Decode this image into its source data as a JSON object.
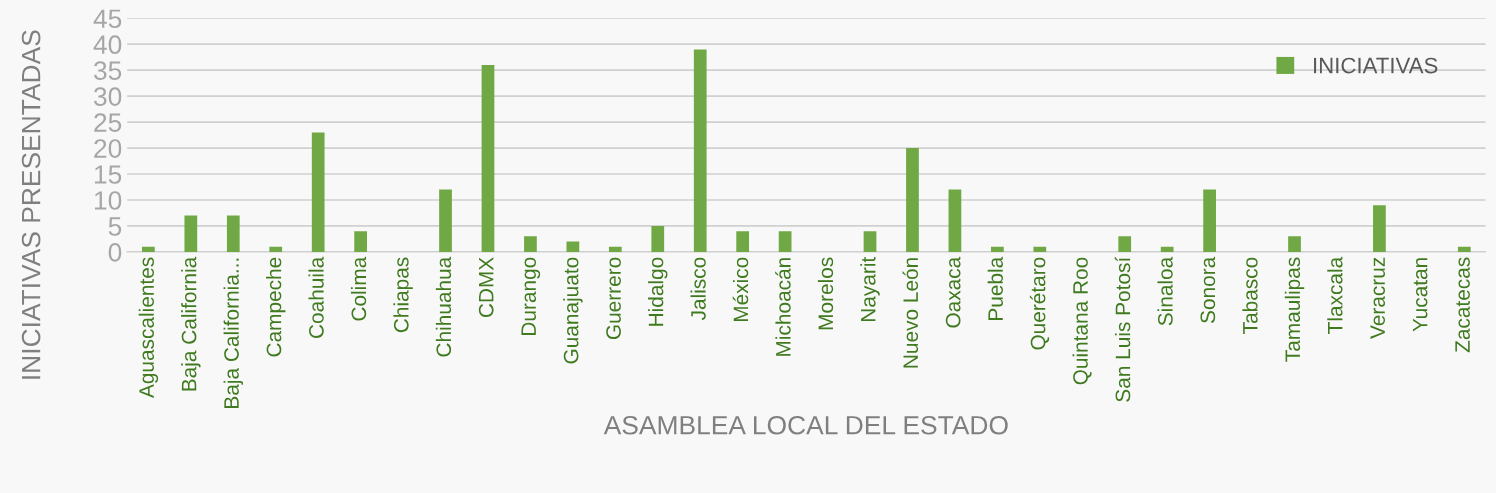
{
  "chart_data": {
    "type": "bar",
    "xlabel": "ASAMBLEA LOCAL DEL ESTADO",
    "ylabel": "INICIATIVAS PRESENTADAS",
    "categories": [
      "Aguascalientes",
      "Baja California",
      "Baja California...",
      "Campeche",
      "Coahuila",
      "Colima",
      "Chiapas",
      "Chihuahua",
      "CDMX",
      "Durango",
      "Guanajuato",
      "Guerrero",
      "Hidalgo",
      "Jalisco",
      "México",
      "Michoacán",
      "Morelos",
      "Nayarit",
      "Nuevo León",
      "Oaxaca",
      "Puebla",
      "Querétaro",
      "Quintana Roo",
      "San Luis Potosí",
      "Sinaloa",
      "Sonora",
      "Tabasco",
      "Tamaulipas",
      "Tlaxcala",
      "Veracruz",
      "Yucatan",
      "Zacatecas"
    ],
    "series": [
      {
        "name": "INICIATIVAS",
        "color": "#70a845",
        "values": [
          1,
          7,
          7,
          1,
          23,
          4,
          0,
          12,
          36,
          3,
          2,
          1,
          5,
          39,
          4,
          4,
          0,
          4,
          20,
          12,
          1,
          1,
          0,
          3,
          1,
          12,
          0,
          3,
          0,
          9,
          0,
          1
        ]
      }
    ],
    "ylim": [
      0,
      45
    ],
    "yticks": [
      0,
      5,
      10,
      15,
      20,
      25,
      30,
      35,
      40,
      45
    ],
    "grid": "y",
    "legend": "top right"
  }
}
